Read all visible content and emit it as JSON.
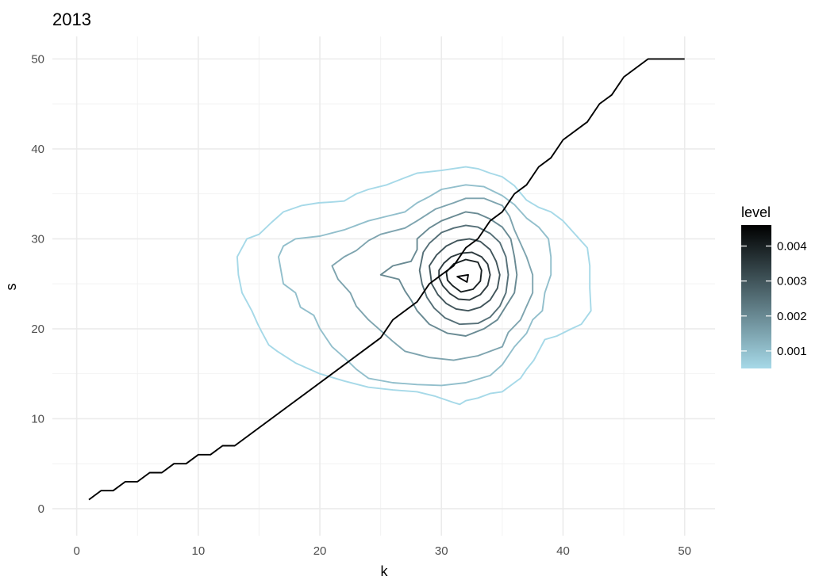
{
  "chart_data": {
    "type": "line",
    "title": "2013",
    "xlabel": "k",
    "ylabel": "s",
    "xlim": [
      -2,
      52.5
    ],
    "ylim": [
      -3,
      52.5
    ],
    "xticks": [
      0,
      10,
      20,
      30,
      40,
      50
    ],
    "yticks": [
      0,
      10,
      20,
      30,
      40,
      50
    ],
    "grid": true,
    "legend": {
      "title": "level",
      "position": "right",
      "range": [
        0.0005,
        0.0046
      ],
      "ticks": [
        0.001,
        0.002,
        0.003,
        0.004
      ],
      "tick_labels": [
        "0.001",
        "0.002",
        "0.003",
        "0.004"
      ],
      "color_low": "#a6d9e8",
      "color_high": "#000000"
    },
    "series": [
      {
        "type": "step-line",
        "color": "#000000",
        "points": [
          [
            1,
            1
          ],
          [
            2,
            2
          ],
          [
            3,
            2
          ],
          [
            4,
            3
          ],
          [
            5,
            3
          ],
          [
            6,
            4
          ],
          [
            7,
            4
          ],
          [
            8,
            5
          ],
          [
            9,
            5
          ],
          [
            10,
            6
          ],
          [
            11,
            6
          ],
          [
            12,
            7
          ],
          [
            13,
            7
          ],
          [
            25,
            19
          ],
          [
            26,
            21
          ],
          [
            28,
            23
          ],
          [
            29,
            25
          ],
          [
            30,
            26
          ],
          [
            31,
            27
          ],
          [
            32,
            29
          ],
          [
            33,
            30
          ],
          [
            34,
            32
          ],
          [
            35,
            33
          ],
          [
            36,
            35
          ],
          [
            37,
            36
          ],
          [
            38,
            38
          ],
          [
            39,
            39
          ],
          [
            40,
            41
          ],
          [
            42,
            43
          ],
          [
            43,
            45
          ],
          [
            44,
            46
          ],
          [
            45,
            48
          ],
          [
            46,
            49
          ],
          [
            47,
            50
          ],
          [
            50,
            50
          ]
        ]
      }
    ],
    "contours": [
      {
        "level": 0.0005,
        "points": [
          [
            19.9,
            34
          ],
          [
            21,
            34.1
          ],
          [
            22,
            34.2
          ],
          [
            23,
            35
          ],
          [
            24,
            35.5
          ],
          [
            25.5,
            36
          ],
          [
            27,
            36.8
          ],
          [
            28,
            37.3
          ],
          [
            30,
            37.6
          ],
          [
            32,
            38
          ],
          [
            33,
            37.8
          ],
          [
            34,
            37.3
          ],
          [
            35,
            36.9
          ],
          [
            36,
            35.9
          ],
          [
            37,
            34.3
          ],
          [
            38,
            33.5
          ],
          [
            39,
            33
          ],
          [
            40,
            32
          ],
          [
            41,
            30.5
          ],
          [
            42,
            29
          ],
          [
            42.2,
            27
          ],
          [
            42.2,
            24.5
          ],
          [
            42.3,
            22
          ],
          [
            41.5,
            20.5
          ],
          [
            40.7,
            20
          ],
          [
            39.5,
            19.2
          ],
          [
            38.5,
            18.8
          ],
          [
            37.6,
            16.5
          ],
          [
            37,
            15.5
          ],
          [
            36.5,
            14.5
          ],
          [
            36,
            14
          ],
          [
            35,
            13
          ],
          [
            34,
            12.8
          ],
          [
            33,
            12.3
          ],
          [
            32,
            12
          ],
          [
            31.5,
            11.6
          ],
          [
            31,
            11.8
          ],
          [
            29.5,
            12.5
          ],
          [
            28,
            13
          ],
          [
            26,
            13.2
          ],
          [
            24,
            13.5
          ],
          [
            22,
            14.2
          ],
          [
            20,
            15
          ],
          [
            18,
            16.2
          ],
          [
            16.5,
            17.5
          ],
          [
            15.8,
            18.2
          ],
          [
            15.2,
            19.7
          ],
          [
            14.9,
            20.5
          ],
          [
            14.4,
            22
          ],
          [
            13.6,
            24
          ],
          [
            13.3,
            26
          ],
          [
            13.2,
            28
          ],
          [
            14,
            30
          ],
          [
            15,
            30.5
          ],
          [
            16,
            31.8
          ],
          [
            17,
            33
          ],
          [
            18.5,
            33.7
          ],
          [
            19.9,
            34
          ]
        ]
      },
      {
        "level": 0.001,
        "points": [
          [
            20,
            30.3
          ],
          [
            22,
            31
          ],
          [
            24,
            32
          ],
          [
            25.5,
            32.5
          ],
          [
            27,
            33
          ],
          [
            28,
            34
          ],
          [
            29,
            34.7
          ],
          [
            30,
            35.5
          ],
          [
            32,
            36
          ],
          [
            33.5,
            35.8
          ],
          [
            35,
            34.8
          ],
          [
            36,
            33.8
          ],
          [
            37,
            32.3
          ],
          [
            38,
            31.3
          ],
          [
            38.8,
            30
          ],
          [
            39,
            28
          ],
          [
            39,
            26
          ],
          [
            38.5,
            24
          ],
          [
            38.3,
            22
          ],
          [
            37.5,
            21
          ],
          [
            37,
            19.5
          ],
          [
            36,
            18
          ],
          [
            35,
            16
          ],
          [
            34,
            14.8
          ],
          [
            32,
            14
          ],
          [
            30,
            13.7
          ],
          [
            28,
            13.8
          ],
          [
            26,
            14
          ],
          [
            24,
            14.5
          ],
          [
            23,
            15.5
          ],
          [
            22,
            16.8
          ],
          [
            21,
            18
          ],
          [
            20,
            20
          ],
          [
            19.5,
            21.5
          ],
          [
            18.4,
            22.4
          ],
          [
            18,
            24
          ],
          [
            17,
            25
          ],
          [
            16.8,
            26.5
          ],
          [
            16.6,
            28
          ],
          [
            17,
            29.2
          ],
          [
            18,
            30
          ],
          [
            20,
            30.3
          ]
        ]
      },
      {
        "level": 0.0015,
        "points": [
          [
            23,
            28.7
          ],
          [
            24,
            29.8
          ],
          [
            25,
            30.5
          ],
          [
            27,
            31.2
          ],
          [
            28,
            32
          ],
          [
            29.5,
            33.3
          ],
          [
            31,
            34
          ],
          [
            32,
            34.5
          ],
          [
            33.5,
            34.5
          ],
          [
            35,
            33.7
          ],
          [
            35.6,
            32.5
          ],
          [
            36,
            31
          ],
          [
            36.5,
            29.5
          ],
          [
            37,
            28
          ],
          [
            37.5,
            26
          ],
          [
            37.5,
            24
          ],
          [
            37,
            22.5
          ],
          [
            36.5,
            21
          ],
          [
            35.5,
            19.6
          ],
          [
            35,
            18
          ],
          [
            33,
            17
          ],
          [
            31,
            16.5
          ],
          [
            29,
            16.8
          ],
          [
            27,
            17.5
          ],
          [
            26,
            18.6
          ],
          [
            25,
            19.8
          ],
          [
            24,
            21
          ],
          [
            23,
            22.5
          ],
          [
            22.5,
            24
          ],
          [
            21.5,
            25.5
          ],
          [
            21,
            27
          ],
          [
            22,
            28
          ],
          [
            23,
            28.7
          ]
        ]
      },
      {
        "level": 0.002,
        "points": [
          [
            28,
            30
          ],
          [
            29,
            31.2
          ],
          [
            30,
            32
          ],
          [
            31,
            32.5
          ],
          [
            32,
            33
          ],
          [
            33,
            32.8
          ],
          [
            34,
            32.2
          ],
          [
            35,
            31.3
          ],
          [
            35.7,
            30
          ],
          [
            36,
            28
          ],
          [
            36.2,
            26
          ],
          [
            36,
            24
          ],
          [
            35.3,
            22.5
          ],
          [
            34.6,
            21
          ],
          [
            33.5,
            20
          ],
          [
            32,
            19.2
          ],
          [
            30.5,
            19.5
          ],
          [
            29,
            20.5
          ],
          [
            28,
            22
          ],
          [
            27.5,
            23.2
          ],
          [
            27,
            24.2
          ],
          [
            26.5,
            25.5
          ],
          [
            25,
            26
          ],
          [
            26,
            27
          ],
          [
            27.5,
            27.5
          ],
          [
            28,
            28.8
          ],
          [
            28,
            30
          ]
        ]
      },
      {
        "level": 0.0025,
        "points": [
          [
            28.5,
            28.5
          ],
          [
            29,
            29.5
          ],
          [
            30,
            30.7
          ],
          [
            31,
            31.2
          ],
          [
            32,
            31.5
          ],
          [
            33,
            31.3
          ],
          [
            34,
            30.6
          ],
          [
            34.8,
            29.6
          ],
          [
            35.3,
            28
          ],
          [
            35.5,
            26
          ],
          [
            35.3,
            24
          ],
          [
            34.8,
            22.5
          ],
          [
            34,
            21.3
          ],
          [
            33,
            20.6
          ],
          [
            31.5,
            20.5
          ],
          [
            30.3,
            21.2
          ],
          [
            29.4,
            22.3
          ],
          [
            28.8,
            23.5
          ],
          [
            28.4,
            25
          ],
          [
            28.2,
            26.5
          ],
          [
            28.5,
            28.5
          ]
        ]
      },
      {
        "level": 0.003,
        "points": [
          [
            29,
            27
          ],
          [
            29.6,
            28.2
          ],
          [
            30.4,
            29.2
          ],
          [
            31.3,
            29.8
          ],
          [
            32.3,
            30
          ],
          [
            33.2,
            29.7
          ],
          [
            34,
            28.8
          ],
          [
            34.5,
            27.5
          ],
          [
            34.8,
            26
          ],
          [
            34.6,
            24.5
          ],
          [
            34,
            23.2
          ],
          [
            33.2,
            22.4
          ],
          [
            32.2,
            22
          ],
          [
            31.2,
            22.2
          ],
          [
            30.4,
            22.8
          ],
          [
            29.7,
            23.8
          ],
          [
            29.2,
            25
          ],
          [
            29,
            27
          ]
        ]
      },
      {
        "level": 0.0035,
        "points": [
          [
            29.8,
            26.5
          ],
          [
            30.2,
            27.3
          ],
          [
            30.8,
            28
          ],
          [
            31.6,
            28.4
          ],
          [
            32.5,
            28.5
          ],
          [
            33.3,
            28
          ],
          [
            33.8,
            27.2
          ],
          [
            34,
            26
          ],
          [
            33.8,
            24.8
          ],
          [
            33.2,
            23.8
          ],
          [
            32.3,
            23.2
          ],
          [
            31.4,
            23.3
          ],
          [
            30.7,
            23.9
          ],
          [
            30.1,
            24.8
          ],
          [
            29.8,
            25.7
          ],
          [
            29.8,
            26.5
          ]
        ]
      },
      {
        "level": 0.004,
        "points": [
          [
            30.4,
            26.3
          ],
          [
            31,
            27.2
          ],
          [
            32,
            27.7
          ],
          [
            33,
            27.4
          ],
          [
            33.3,
            26.5
          ],
          [
            33.2,
            25.3
          ],
          [
            32.6,
            24.4
          ],
          [
            31.6,
            24.1
          ],
          [
            30.9,
            24.8
          ],
          [
            30.5,
            25.4
          ],
          [
            30.4,
            26.3
          ]
        ]
      },
      {
        "level": 0.0045,
        "points": [
          [
            31.3,
            25.8
          ],
          [
            32.2,
            26
          ],
          [
            32.1,
            25.2
          ],
          [
            31.3,
            25.8
          ]
        ]
      }
    ]
  }
}
